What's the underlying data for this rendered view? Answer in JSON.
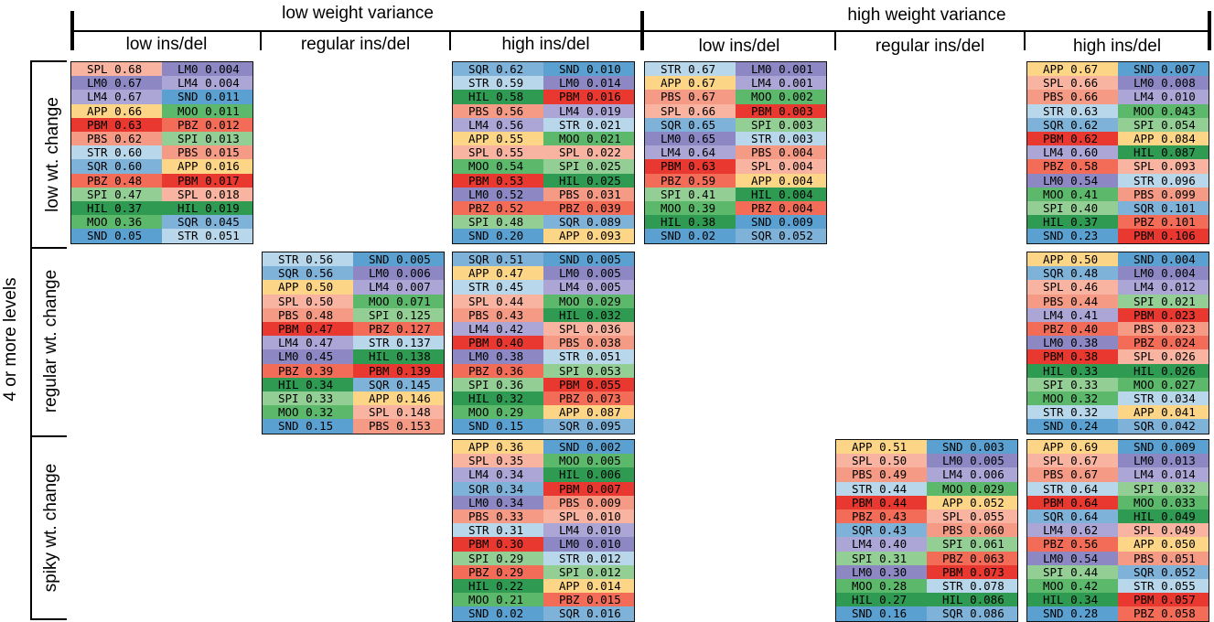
{
  "colors": {
    "SPL": "#f8b4a0",
    "LM0": "#8d88c4",
    "LM4": "#aba6d6",
    "APP": "#fdd587",
    "PBM": "#e8382f",
    "PBS": "#f49a85",
    "STR": "#b8d7ea",
    "SQR": "#7fb2d9",
    "PBZ": "#f26c58",
    "SPI": "#93cf94",
    "HIL": "#2e9a52",
    "MOO": "#5cb86a",
    "SND": "#5aa0d0"
  },
  "headers": {
    "group_low": "low weight variance",
    "group_high": "high weight variance",
    "columns": [
      "low ins/del",
      "regular ins/del",
      "high ins/del",
      "low ins/del",
      "regular ins/del",
      "high ins/del"
    ],
    "left_group": "4 or more levels",
    "rows": [
      "low wt. change",
      "regular wt. change",
      "spiky wt. change"
    ]
  },
  "tables": [
    {
      "row": 0,
      "col": 0,
      "left": [
        [
          "SPL",
          "0.68"
        ],
        [
          "LM0",
          "0.67"
        ],
        [
          "LM4",
          "0.67"
        ],
        [
          "APP",
          "0.66"
        ],
        [
          "PBM",
          "0.63"
        ],
        [
          "PBS",
          "0.62"
        ],
        [
          "STR",
          "0.60"
        ],
        [
          "SQR",
          "0.60"
        ],
        [
          "PBZ",
          "0.48"
        ],
        [
          "SPI",
          "0.47"
        ],
        [
          "HIL",
          "0.37"
        ],
        [
          "MOO",
          "0.36"
        ],
        [
          "SND",
          "0.05"
        ]
      ],
      "right": [
        [
          "LM0",
          "0.004"
        ],
        [
          "LM4",
          "0.004"
        ],
        [
          "SND",
          "0.011"
        ],
        [
          "MOO",
          "0.011"
        ],
        [
          "PBZ",
          "0.012"
        ],
        [
          "SPI",
          "0.013"
        ],
        [
          "PBS",
          "0.015"
        ],
        [
          "APP",
          "0.016"
        ],
        [
          "PBM",
          "0.017"
        ],
        [
          "SPL",
          "0.018"
        ],
        [
          "HIL",
          "0.019"
        ],
        [
          "SQR",
          "0.045"
        ],
        [
          "STR",
          "0.051"
        ]
      ]
    },
    {
      "row": 0,
      "col": 2,
      "left": [
        [
          "SQR",
          "0.62"
        ],
        [
          "STR",
          "0.59"
        ],
        [
          "HIL",
          "0.58"
        ],
        [
          "PBS",
          "0.56"
        ],
        [
          "LM4",
          "0.56"
        ],
        [
          "APP",
          "0.55"
        ],
        [
          "SPL",
          "0.55"
        ],
        [
          "MOO",
          "0.54"
        ],
        [
          "PBM",
          "0.53"
        ],
        [
          "LM0",
          "0.52"
        ],
        [
          "PBZ",
          "0.52"
        ],
        [
          "SPI",
          "0.48"
        ],
        [
          "SND",
          "0.20"
        ]
      ],
      "right": [
        [
          "SND",
          "0.010"
        ],
        [
          "LM0",
          "0.014"
        ],
        [
          "PBM",
          "0.016"
        ],
        [
          "LM4",
          "0.019"
        ],
        [
          "STR",
          "0.021"
        ],
        [
          "MOO",
          "0.021"
        ],
        [
          "SPL",
          "0.022"
        ],
        [
          "SPI",
          "0.025"
        ],
        [
          "HIL",
          "0.025"
        ],
        [
          "PBS",
          "0.031"
        ],
        [
          "PBZ",
          "0.039"
        ],
        [
          "SQR",
          "0.089"
        ],
        [
          "APP",
          "0.093"
        ]
      ]
    },
    {
      "row": 0,
      "col": 3,
      "left": [
        [
          "STR",
          "0.67"
        ],
        [
          "APP",
          "0.67"
        ],
        [
          "PBS",
          "0.67"
        ],
        [
          "SPL",
          "0.66"
        ],
        [
          "SQR",
          "0.65"
        ],
        [
          "LM0",
          "0.65"
        ],
        [
          "LM4",
          "0.64"
        ],
        [
          "PBM",
          "0.63"
        ],
        [
          "PBZ",
          "0.59"
        ],
        [
          "SPI",
          "0.41"
        ],
        [
          "MOO",
          "0.39"
        ],
        [
          "HIL",
          "0.38"
        ],
        [
          "SND",
          "0.02"
        ]
      ],
      "right": [
        [
          "LM0",
          "0.001"
        ],
        [
          "LM4",
          "0.001"
        ],
        [
          "MOO",
          "0.002"
        ],
        [
          "PBM",
          "0.003"
        ],
        [
          "SPI",
          "0.003"
        ],
        [
          "STR",
          "0.003"
        ],
        [
          "PBS",
          "0.004"
        ],
        [
          "SPL",
          "0.004"
        ],
        [
          "APP",
          "0.004"
        ],
        [
          "HIL",
          "0.004"
        ],
        [
          "PBZ",
          "0.004"
        ],
        [
          "SND",
          "0.009"
        ],
        [
          "SQR",
          "0.052"
        ]
      ]
    },
    {
      "row": 0,
      "col": 5,
      "left": [
        [
          "APP",
          "0.67"
        ],
        [
          "SPL",
          "0.66"
        ],
        [
          "PBS",
          "0.66"
        ],
        [
          "STR",
          "0.63"
        ],
        [
          "SQR",
          "0.62"
        ],
        [
          "PBM",
          "0.62"
        ],
        [
          "LM4",
          "0.60"
        ],
        [
          "PBZ",
          "0.58"
        ],
        [
          "LM0",
          "0.54"
        ],
        [
          "MOO",
          "0.41"
        ],
        [
          "SPI",
          "0.40"
        ],
        [
          "HIL",
          "0.37"
        ],
        [
          "SND",
          "0.23"
        ]
      ],
      "right": [
        [
          "SND",
          "0.007"
        ],
        [
          "LM0",
          "0.008"
        ],
        [
          "LM4",
          "0.010"
        ],
        [
          "MOO",
          "0.043"
        ],
        [
          "SPI",
          "0.054"
        ],
        [
          "APP",
          "0.084"
        ],
        [
          "HIL",
          "0.087"
        ],
        [
          "SPL",
          "0.093"
        ],
        [
          "STR",
          "0.096"
        ],
        [
          "PBS",
          "0.099"
        ],
        [
          "SQR",
          "0.101"
        ],
        [
          "PBZ",
          "0.101"
        ],
        [
          "PBM",
          "0.106"
        ]
      ]
    },
    {
      "row": 1,
      "col": 1,
      "left": [
        [
          "STR",
          "0.56"
        ],
        [
          "SQR",
          "0.56"
        ],
        [
          "APP",
          "0.50"
        ],
        [
          "SPL",
          "0.50"
        ],
        [
          "PBS",
          "0.48"
        ],
        [
          "PBM",
          "0.47"
        ],
        [
          "LM4",
          "0.47"
        ],
        [
          "LM0",
          "0.45"
        ],
        [
          "PBZ",
          "0.39"
        ],
        [
          "HIL",
          "0.34"
        ],
        [
          "SPI",
          "0.33"
        ],
        [
          "MOO",
          "0.32"
        ],
        [
          "SND",
          "0.15"
        ]
      ],
      "right": [
        [
          "SND",
          "0.005"
        ],
        [
          "LM0",
          "0.006"
        ],
        [
          "LM4",
          "0.007"
        ],
        [
          "MOO",
          "0.071"
        ],
        [
          "SPI",
          "0.125"
        ],
        [
          "PBZ",
          "0.127"
        ],
        [
          "STR",
          "0.137"
        ],
        [
          "HIL",
          "0.138"
        ],
        [
          "PBM",
          "0.139"
        ],
        [
          "SQR",
          "0.145"
        ],
        [
          "APP",
          "0.146"
        ],
        [
          "SPL",
          "0.148"
        ],
        [
          "PBS",
          "0.153"
        ]
      ]
    },
    {
      "row": 1,
      "col": 2,
      "left": [
        [
          "SQR",
          "0.51"
        ],
        [
          "APP",
          "0.47"
        ],
        [
          "STR",
          "0.45"
        ],
        [
          "SPL",
          "0.44"
        ],
        [
          "PBS",
          "0.43"
        ],
        [
          "LM4",
          "0.42"
        ],
        [
          "PBM",
          "0.40"
        ],
        [
          "LM0",
          "0.38"
        ],
        [
          "PBZ",
          "0.36"
        ],
        [
          "SPI",
          "0.36"
        ],
        [
          "HIL",
          "0.32"
        ],
        [
          "MOO",
          "0.29"
        ],
        [
          "SND",
          "0.15"
        ]
      ],
      "right": [
        [
          "SND",
          "0.005"
        ],
        [
          "LM0",
          "0.005"
        ],
        [
          "LM4",
          "0.005"
        ],
        [
          "MOO",
          "0.029"
        ],
        [
          "HIL",
          "0.032"
        ],
        [
          "SPL",
          "0.036"
        ],
        [
          "PBS",
          "0.038"
        ],
        [
          "STR",
          "0.051"
        ],
        [
          "SPI",
          "0.053"
        ],
        [
          "PBM",
          "0.055"
        ],
        [
          "PBZ",
          "0.073"
        ],
        [
          "APP",
          "0.087"
        ],
        [
          "SQR",
          "0.095"
        ]
      ]
    },
    {
      "row": 1,
      "col": 5,
      "left": [
        [
          "APP",
          "0.50"
        ],
        [
          "SQR",
          "0.48"
        ],
        [
          "SPL",
          "0.46"
        ],
        [
          "PBS",
          "0.44"
        ],
        [
          "LM4",
          "0.41"
        ],
        [
          "PBZ",
          "0.40"
        ],
        [
          "LM0",
          "0.38"
        ],
        [
          "PBM",
          "0.38"
        ],
        [
          "HIL",
          "0.33"
        ],
        [
          "SPI",
          "0.33"
        ],
        [
          "MOO",
          "0.32"
        ],
        [
          "STR",
          "0.32"
        ],
        [
          "SND",
          "0.24"
        ]
      ],
      "right": [
        [
          "SND",
          "0.004"
        ],
        [
          "LM0",
          "0.004"
        ],
        [
          "LM4",
          "0.012"
        ],
        [
          "SPI",
          "0.021"
        ],
        [
          "PBM",
          "0.023"
        ],
        [
          "PBS",
          "0.023"
        ],
        [
          "PBZ",
          "0.024"
        ],
        [
          "SPL",
          "0.026"
        ],
        [
          "HIL",
          "0.026"
        ],
        [
          "MOO",
          "0.027"
        ],
        [
          "STR",
          "0.034"
        ],
        [
          "APP",
          "0.041"
        ],
        [
          "SQR",
          "0.042"
        ]
      ]
    },
    {
      "row": 2,
      "col": 2,
      "left": [
        [
          "APP",
          "0.36"
        ],
        [
          "SPL",
          "0.35"
        ],
        [
          "LM4",
          "0.34"
        ],
        [
          "SQR",
          "0.34"
        ],
        [
          "LM0",
          "0.34"
        ],
        [
          "PBS",
          "0.33"
        ],
        [
          "STR",
          "0.31"
        ],
        [
          "PBM",
          "0.30"
        ],
        [
          "SPI",
          "0.29"
        ],
        [
          "PBZ",
          "0.29"
        ],
        [
          "HIL",
          "0.22"
        ],
        [
          "MOO",
          "0.21"
        ],
        [
          "SND",
          "0.02"
        ]
      ],
      "right": [
        [
          "SND",
          "0.002"
        ],
        [
          "MOO",
          "0.005"
        ],
        [
          "HIL",
          "0.006"
        ],
        [
          "PBM",
          "0.007"
        ],
        [
          "PBS",
          "0.009"
        ],
        [
          "SPL",
          "0.010"
        ],
        [
          "LM4",
          "0.010"
        ],
        [
          "LM0",
          "0.010"
        ],
        [
          "STR",
          "0.012"
        ],
        [
          "SPI",
          "0.012"
        ],
        [
          "APP",
          "0.014"
        ],
        [
          "PBZ",
          "0.015"
        ],
        [
          "SQR",
          "0.016"
        ]
      ]
    },
    {
      "row": 2,
      "col": 4,
      "left": [
        [
          "APP",
          "0.51"
        ],
        [
          "SPL",
          "0.50"
        ],
        [
          "PBS",
          "0.49"
        ],
        [
          "STR",
          "0.44"
        ],
        [
          "PBM",
          "0.44"
        ],
        [
          "PBZ",
          "0.43"
        ],
        [
          "SQR",
          "0.43"
        ],
        [
          "LM4",
          "0.40"
        ],
        [
          "SPI",
          "0.31"
        ],
        [
          "LM0",
          "0.30"
        ],
        [
          "MOO",
          "0.28"
        ],
        [
          "HIL",
          "0.27"
        ],
        [
          "SND",
          "0.16"
        ]
      ],
      "right": [
        [
          "SND",
          "0.003"
        ],
        [
          "LM0",
          "0.005"
        ],
        [
          "LM4",
          "0.006"
        ],
        [
          "MOO",
          "0.029"
        ],
        [
          "APP",
          "0.052"
        ],
        [
          "SPL",
          "0.055"
        ],
        [
          "PBS",
          "0.060"
        ],
        [
          "SPI",
          "0.061"
        ],
        [
          "PBZ",
          "0.063"
        ],
        [
          "PBM",
          "0.073"
        ],
        [
          "STR",
          "0.078"
        ],
        [
          "HIL",
          "0.086"
        ],
        [
          "SQR",
          "0.086"
        ]
      ]
    },
    {
      "row": 2,
      "col": 5,
      "left": [
        [
          "APP",
          "0.69"
        ],
        [
          "SPL",
          "0.67"
        ],
        [
          "PBS",
          "0.67"
        ],
        [
          "STR",
          "0.64"
        ],
        [
          "PBM",
          "0.64"
        ],
        [
          "SQR",
          "0.64"
        ],
        [
          "LM4",
          "0.62"
        ],
        [
          "PBZ",
          "0.56"
        ],
        [
          "LM0",
          "0.54"
        ],
        [
          "SPI",
          "0.44"
        ],
        [
          "MOO",
          "0.42"
        ],
        [
          "HIL",
          "0.34"
        ],
        [
          "SND",
          "0.28"
        ]
      ],
      "right": [
        [
          "SND",
          "0.009"
        ],
        [
          "LM0",
          "0.013"
        ],
        [
          "LM4",
          "0.014"
        ],
        [
          "SPI",
          "0.032"
        ],
        [
          "MOO",
          "0.033"
        ],
        [
          "HIL",
          "0.049"
        ],
        [
          "SPL",
          "0.049"
        ],
        [
          "APP",
          "0.050"
        ],
        [
          "PBS",
          "0.051"
        ],
        [
          "SQR",
          "0.052"
        ],
        [
          "STR",
          "0.055"
        ],
        [
          "PBM",
          "0.057"
        ],
        [
          "PBZ",
          "0.058"
        ]
      ]
    }
  ]
}
